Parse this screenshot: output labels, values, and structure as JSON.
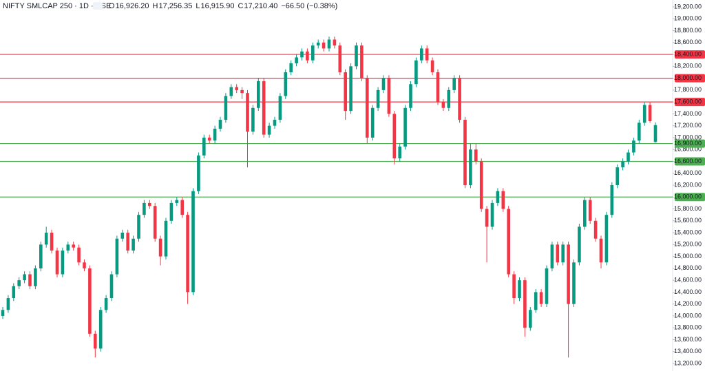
{
  "header": {
    "symbol": "NIFTY SMLCAP 250 · 1D · NSE",
    "ohlc": [
      {
        "key": "O",
        "value": "16,926.20"
      },
      {
        "key": "H",
        "value": "17,256.35"
      },
      {
        "key": "L",
        "value": "16,915.90"
      },
      {
        "key": "C",
        "value": "17,210.40"
      }
    ],
    "change": "−66.50 (−0.38%)"
  },
  "chart_data": {
    "type": "candlestick",
    "up_color": "#089981",
    "down_color": "#f23645",
    "ylim": [
      13200,
      19200
    ],
    "yticks": [
      {
        "value": 13200,
        "label": "13,200.00"
      },
      {
        "value": 13400,
        "label": "13,400.00"
      },
      {
        "value": 13600,
        "label": "13,600.00"
      },
      {
        "value": 13800,
        "label": "13,800.00"
      },
      {
        "value": 14000,
        "label": "14,000.00"
      },
      {
        "value": 14200,
        "label": "14,200.00"
      },
      {
        "value": 14400,
        "label": "14,400.00"
      },
      {
        "value": 14600,
        "label": "14,600.00"
      },
      {
        "value": 14800,
        "label": "14,800.00"
      },
      {
        "value": 15000,
        "label": "15,000.00"
      },
      {
        "value": 15200,
        "label": "15,200.00"
      },
      {
        "value": 15400,
        "label": "15,400.00"
      },
      {
        "value": 15600,
        "label": "15,600.00"
      },
      {
        "value": 15800,
        "label": "15,800.00"
      },
      {
        "value": 16000,
        "label": "16,000.00"
      },
      {
        "value": 16200,
        "label": "16,200.00"
      },
      {
        "value": 16400,
        "label": "16,400.00"
      },
      {
        "value": 16600,
        "label": "16,600.00"
      },
      {
        "value": 16800,
        "label": "16,800.00"
      },
      {
        "value": 17000,
        "label": "17,000.00"
      },
      {
        "value": 17200,
        "label": "17,200.00"
      },
      {
        "value": 17400,
        "label": "17,400.00"
      },
      {
        "value": 17600,
        "label": "17,600.00"
      },
      {
        "value": 17800,
        "label": "17,800.00"
      },
      {
        "value": 18000,
        "label": "18,000.00"
      },
      {
        "value": 18200,
        "label": "18,200.00"
      },
      {
        "value": 18400,
        "label": "18,400.00"
      },
      {
        "value": 18600,
        "label": "18,600.00"
      },
      {
        "value": 18800,
        "label": "18,800.00"
      },
      {
        "value": 19000,
        "label": "19,000.00"
      },
      {
        "value": 19200,
        "label": "19,200.00"
      }
    ],
    "levels": [
      {
        "value": 18400,
        "label": "18,400.00",
        "color": "#f23645"
      },
      {
        "value": 18000,
        "label": "18,000.00",
        "color": "#f23645"
      },
      {
        "value": 17600,
        "label": "17,600.00",
        "color": "#f23645"
      },
      {
        "value": 16900,
        "label": "16,900.00",
        "color": "#4caf50"
      },
      {
        "value": 16600,
        "label": "16,600.00",
        "color": "#4caf50"
      },
      {
        "value": 16000,
        "label": "16,000.00",
        "color": "#4caf50"
      }
    ],
    "ohlc": [
      [
        14000,
        14150,
        13950,
        14100
      ],
      [
        14100,
        14350,
        14050,
        14300
      ],
      [
        14300,
        14550,
        14250,
        14500
      ],
      [
        14500,
        14650,
        14450,
        14600
      ],
      [
        14600,
        14750,
        14550,
        14700
      ],
      [
        14700,
        14750,
        14450,
        14500
      ],
      [
        14500,
        14850,
        14450,
        14800
      ],
      [
        14800,
        15250,
        14750,
        15200
      ],
      [
        15200,
        15500,
        15150,
        15400
      ],
      [
        15400,
        15450,
        15050,
        15100
      ],
      [
        15100,
        15150,
        14650,
        14700
      ],
      [
        14700,
        15150,
        14650,
        15100
      ],
      [
        15100,
        15250,
        15050,
        15200
      ],
      [
        15200,
        15250,
        15100,
        15150
      ],
      [
        15150,
        15200,
        14850,
        14900
      ],
      [
        14900,
        14950,
        14750,
        14800
      ],
      [
        14800,
        14850,
        13650,
        13700
      ],
      [
        13700,
        13750,
        13300,
        13450
      ],
      [
        13450,
        14150,
        13400,
        14100
      ],
      [
        14100,
        14350,
        14050,
        14300
      ],
      [
        14300,
        14750,
        14250,
        14700
      ],
      [
        14700,
        15350,
        14650,
        15300
      ],
      [
        15300,
        15450,
        15250,
        15400
      ],
      [
        15400,
        15450,
        15050,
        15100
      ],
      [
        15100,
        15350,
        15050,
        15300
      ],
      [
        15300,
        15750,
        15250,
        15700
      ],
      [
        15700,
        15950,
        15650,
        15900
      ],
      [
        15900,
        15950,
        15800,
        15850
      ],
      [
        15850,
        15900,
        15250,
        15300
      ],
      [
        15300,
        15350,
        14850,
        15000
      ],
      [
        15000,
        15650,
        14950,
        15600
      ],
      [
        15600,
        15950,
        15550,
        15900
      ],
      [
        15900,
        16000,
        15850,
        15950
      ],
      [
        15950,
        16000,
        15650,
        15700
      ],
      [
        15700,
        15750,
        14200,
        14400
      ],
      [
        14400,
        16150,
        14350,
        16100
      ],
      [
        16100,
        16750,
        16050,
        16700
      ],
      [
        16700,
        17050,
        16650,
        17000
      ],
      [
        17000,
        17050,
        16900,
        16950
      ],
      [
        16950,
        17200,
        16900,
        17150
      ],
      [
        17150,
        17350,
        17100,
        17300
      ],
      [
        17300,
        17750,
        17250,
        17700
      ],
      [
        17700,
        17900,
        17650,
        17850
      ],
      [
        17850,
        17900,
        17750,
        17800
      ],
      [
        17800,
        17850,
        17650,
        17750
      ],
      [
        17750,
        17800,
        16500,
        17100
      ],
      [
        17100,
        17550,
        17050,
        17500
      ],
      [
        17500,
        18000,
        17450,
        17950
      ],
      [
        17950,
        18000,
        17000,
        17050
      ],
      [
        17050,
        17250,
        17000,
        17200
      ],
      [
        17200,
        17350,
        17150,
        17300
      ],
      [
        17300,
        17750,
        17250,
        17700
      ],
      [
        17700,
        18150,
        17650,
        18100
      ],
      [
        18100,
        18300,
        18050,
        18250
      ],
      [
        18250,
        18400,
        18200,
        18350
      ],
      [
        18350,
        18500,
        18300,
        18450
      ],
      [
        18450,
        18500,
        18250,
        18300
      ],
      [
        18300,
        18600,
        18250,
        18550
      ],
      [
        18550,
        18650,
        18500,
        18600
      ],
      [
        18600,
        18650,
        18450,
        18500
      ],
      [
        18500,
        18700,
        18450,
        18650
      ],
      [
        18650,
        18700,
        18500,
        18550
      ],
      [
        18550,
        18600,
        18050,
        18100
      ],
      [
        18100,
        18150,
        17300,
        17450
      ],
      [
        17450,
        18250,
        17400,
        18200
      ],
      [
        18200,
        18600,
        18150,
        18550
      ],
      [
        18550,
        18600,
        17950,
        18000
      ],
      [
        18000,
        18050,
        16900,
        17000
      ],
      [
        17000,
        17550,
        16950,
        17500
      ],
      [
        17500,
        17850,
        17450,
        17800
      ],
      [
        17800,
        18050,
        17750,
        18000
      ],
      [
        18000,
        18050,
        17350,
        17400
      ],
      [
        17400,
        17450,
        16550,
        16650
      ],
      [
        16650,
        16900,
        16600,
        16850
      ],
      [
        16850,
        17550,
        16800,
        17500
      ],
      [
        17500,
        17950,
        17450,
        17900
      ],
      [
        17900,
        18350,
        17850,
        18300
      ],
      [
        18300,
        18550,
        18250,
        18500
      ],
      [
        18500,
        18550,
        18250,
        18300
      ],
      [
        18300,
        18350,
        18050,
        18100
      ],
      [
        18100,
        18150,
        17550,
        17600
      ],
      [
        17600,
        17650,
        17450,
        17500
      ],
      [
        17500,
        17850,
        17450,
        17800
      ],
      [
        17800,
        18050,
        17750,
        18000
      ],
      [
        18000,
        18050,
        17250,
        17300
      ],
      [
        17300,
        17350,
        16150,
        16200
      ],
      [
        16200,
        16900,
        16150,
        16800
      ],
      [
        16800,
        16900,
        16550,
        16600
      ],
      [
        16600,
        16650,
        15750,
        15800
      ],
      [
        15800,
        15850,
        14900,
        15500
      ],
      [
        15500,
        15950,
        15450,
        15900
      ],
      [
        15900,
        16150,
        15850,
        16100
      ],
      [
        16100,
        16150,
        15750,
        15800
      ],
      [
        15800,
        15850,
        14650,
        14700
      ],
      [
        14700,
        14750,
        14200,
        14300
      ],
      [
        14300,
        14650,
        14250,
        14600
      ],
      [
        14600,
        14650,
        13650,
        13800
      ],
      [
        13800,
        14150,
        13750,
        14100
      ],
      [
        14100,
        14450,
        14050,
        14400
      ],
      [
        14400,
        14450,
        14150,
        14200
      ],
      [
        14200,
        14850,
        14150,
        14800
      ],
      [
        14800,
        15250,
        14750,
        15200
      ],
      [
        15200,
        15250,
        14850,
        14900
      ],
      [
        14900,
        15250,
        14850,
        15200
      ],
      [
        15200,
        15250,
        13300,
        14200
      ],
      [
        14200,
        14950,
        14150,
        14900
      ],
      [
        14900,
        15550,
        14850,
        15500
      ],
      [
        15500,
        16000,
        15450,
        15950
      ],
      [
        15950,
        16000,
        15550,
        15600
      ],
      [
        15600,
        15650,
        15250,
        15300
      ],
      [
        15300,
        15350,
        14800,
        14900
      ],
      [
        14900,
        15750,
        14850,
        15700
      ],
      [
        15700,
        16250,
        15650,
        16200
      ],
      [
        16200,
        16550,
        16150,
        16500
      ],
      [
        16500,
        16650,
        16450,
        16600
      ],
      [
        16600,
        16800,
        16550,
        16750
      ],
      [
        16750,
        17000,
        16700,
        16950
      ],
      [
        16950,
        17300,
        16900,
        17250
      ],
      [
        17250,
        17600,
        17200,
        17550
      ],
      [
        17550,
        17600,
        17250,
        17276.9
      ],
      [
        16926.2,
        17256.35,
        16915.9,
        17210.4
      ]
    ]
  }
}
